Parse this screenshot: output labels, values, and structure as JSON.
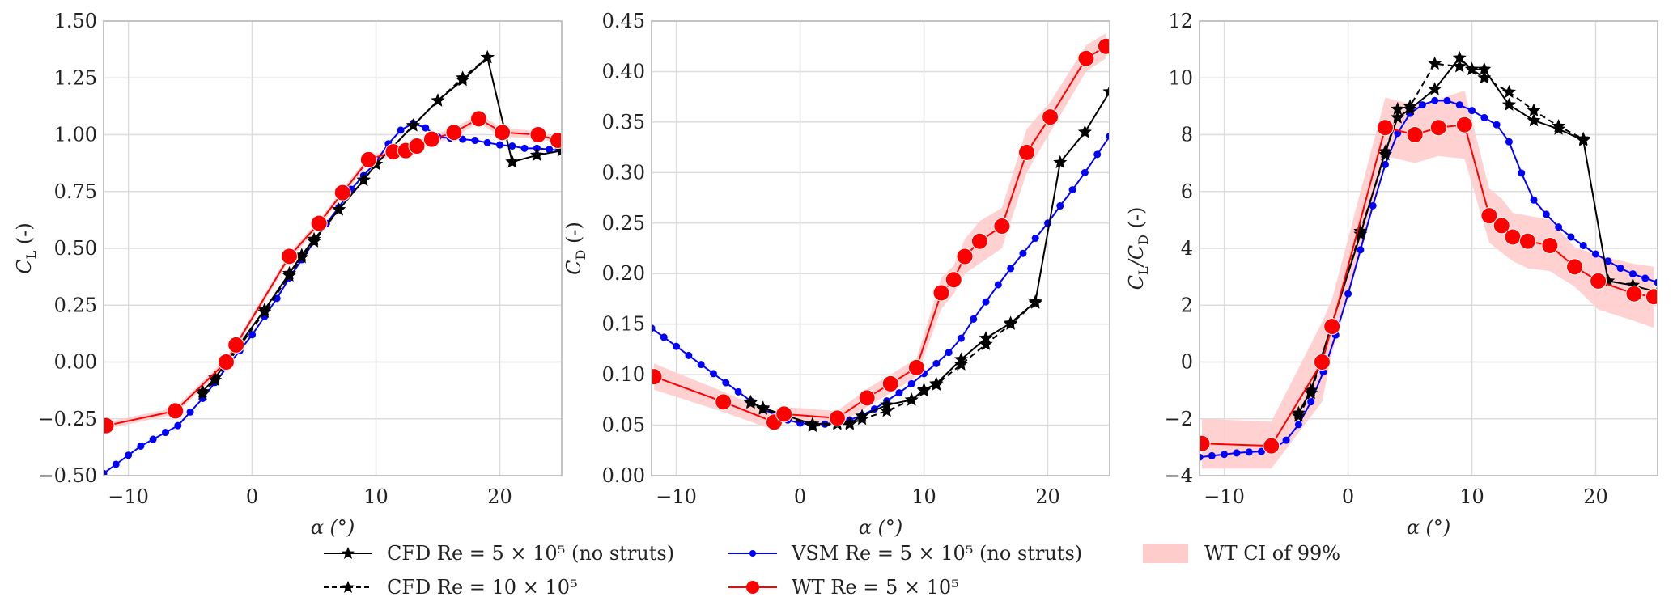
{
  "figure": {
    "legend": [
      {
        "id": "cfd5",
        "label": "CFD Re = 5 × 10⁵ (no struts)",
        "color": "#000000",
        "style": "solid",
        "marker": "star"
      },
      {
        "id": "cfd10",
        "label": "CFD Re = 10 × 10⁵",
        "color": "#000000",
        "style": "dashed",
        "marker": "star"
      },
      {
        "id": "vsm",
        "label": "VSM Re = 5 × 10⁵ (no struts)",
        "color": "#0000ff",
        "style": "solid",
        "marker": "dot"
      },
      {
        "id": "wt",
        "label": "WT Re = 5 × 10⁵",
        "color": "#ff0000",
        "style": "solid",
        "marker": "circle"
      },
      {
        "id": "ci",
        "label": "WT CI of 99%",
        "color": "#ffcccc",
        "style": "fill",
        "marker": "patch"
      }
    ]
  },
  "chart_data": [
    {
      "type": "line",
      "title": "",
      "xlabel": "α (°)",
      "ylabel": "C_L (-)",
      "ylabel_main": "C",
      "ylabel_sub": "L",
      "ylabel_suffix": " (-)",
      "xlim": [
        -12,
        25
      ],
      "ylim": [
        -0.5,
        1.5
      ],
      "xticks": [
        -10,
        0,
        10,
        20
      ],
      "xtick_labels": [
        "−10",
        "0",
        "10",
        "20"
      ],
      "yticks": [
        -0.5,
        -0.25,
        0,
        0.25,
        0.5,
        0.75,
        1.0,
        1.25,
        1.5
      ],
      "ytick_labels": [
        "−0.50",
        "−0.25",
        "0.00",
        "0.25",
        "0.50",
        "0.75",
        "1.00",
        "1.25",
        "1.50"
      ],
      "grid": true,
      "series": [
        {
          "name": "VSM Re = 5 × 10⁵ (no struts)",
          "ref": "vsm",
          "x": [
            -12,
            -11,
            -10,
            -9,
            -8,
            -7,
            -6,
            -5,
            -4,
            -3,
            -2,
            -1,
            0,
            1,
            2,
            3,
            4,
            5,
            6,
            7,
            8,
            9,
            10,
            11,
            12,
            13,
            14,
            15,
            16,
            17,
            18,
            19,
            20,
            21,
            22,
            23,
            24,
            25
          ],
          "y": [
            -0.49,
            -0.45,
            -0.41,
            -0.37,
            -0.34,
            -0.31,
            -0.28,
            -0.22,
            -0.16,
            -0.09,
            -0.02,
            0.05,
            0.12,
            0.2,
            0.28,
            0.37,
            0.45,
            0.53,
            0.61,
            0.68,
            0.76,
            0.82,
            0.88,
            0.96,
            1.02,
            1.05,
            1.03,
            0.99,
            0.985,
            0.98,
            0.975,
            0.965,
            0.955,
            0.95,
            0.94,
            0.94,
            0.935,
            0.93
          ]
        },
        {
          "name": "CFD Re = 5 × 10⁵ (no struts)",
          "ref": "cfd5",
          "x": [
            -4,
            -3,
            1,
            3,
            4,
            5,
            7,
            9,
            10,
            13,
            15,
            17,
            19,
            21,
            23,
            25
          ],
          "y": [
            -0.13,
            -0.07,
            0.23,
            0.39,
            0.47,
            0.54,
            0.67,
            0.8,
            0.87,
            1.04,
            1.15,
            1.24,
            1.34,
            0.88,
            0.91,
            0.93
          ]
        },
        {
          "name": "CFD Re = 10 × 10⁵",
          "ref": "cfd10",
          "x": [
            -4,
            -3,
            1,
            3,
            4,
            5,
            7,
            9,
            10,
            13,
            15,
            17,
            19
          ],
          "y": [
            -0.14,
            -0.08,
            0.22,
            0.38,
            0.46,
            0.53,
            0.67,
            0.8,
            0.87,
            1.04,
            1.15,
            1.25,
            1.34
          ]
        },
        {
          "name": "WT Re = 5 × 10⁵",
          "ref": "wt",
          "x": [
            -11.8,
            -6.2,
            -2.1,
            -1.3,
            3.0,
            5.4,
            7.3,
            9.4,
            11.4,
            12.4,
            13.3,
            14.5,
            16.3,
            18.3,
            20.2,
            23.1,
            24.7
          ],
          "y": [
            -0.28,
            -0.215,
            0.0,
            0.075,
            0.465,
            0.61,
            0.745,
            0.89,
            0.925,
            0.93,
            0.95,
            0.98,
            1.01,
            1.07,
            1.01,
            1.0,
            0.975
          ],
          "ci_lower": [
            -0.295,
            -0.23,
            -0.015,
            0.06,
            0.45,
            0.595,
            0.73,
            0.875,
            0.905,
            0.91,
            0.93,
            0.96,
            0.99,
            1.05,
            0.99,
            0.985,
            0.96
          ],
          "ci_upper": [
            -0.265,
            -0.2,
            0.015,
            0.09,
            0.48,
            0.625,
            0.76,
            0.905,
            0.945,
            0.95,
            0.97,
            1.0,
            1.03,
            1.09,
            1.03,
            1.015,
            0.99
          ]
        }
      ]
    },
    {
      "type": "line",
      "title": "",
      "xlabel": "α (°)",
      "ylabel": "C_D (-)",
      "ylabel_main": "C",
      "ylabel_sub": "D",
      "ylabel_suffix": " (-)",
      "xlim": [
        -12,
        25
      ],
      "ylim": [
        0,
        0.45
      ],
      "xticks": [
        -10,
        0,
        10,
        20
      ],
      "xtick_labels": [
        "−10",
        "0",
        "10",
        "20"
      ],
      "yticks": [
        0,
        0.05,
        0.1,
        0.15,
        0.2,
        0.25,
        0.3,
        0.35,
        0.4,
        0.45
      ],
      "ytick_labels": [
        "0.00",
        "0.05",
        "0.10",
        "0.15",
        "0.20",
        "0.25",
        "0.30",
        "0.35",
        "0.40",
        "0.45"
      ],
      "grid": true,
      "series": [
        {
          "name": "VSM Re = 5 × 10⁵ (no struts)",
          "ref": "vsm",
          "x": [
            -12,
            -11,
            -10,
            -9,
            -8,
            -7,
            -6,
            -5,
            -4,
            -3,
            -2,
            -1,
            0,
            1,
            2,
            3,
            4,
            5,
            6,
            7,
            8,
            9,
            10,
            11,
            12,
            13,
            14,
            15,
            16,
            17,
            18,
            19,
            20,
            21,
            22,
            23,
            24,
            25
          ],
          "y": [
            0.146,
            0.137,
            0.128,
            0.119,
            0.11,
            0.101,
            0.092,
            0.083,
            0.074,
            0.066,
            0.06,
            0.055,
            0.052,
            0.051,
            0.051,
            0.052,
            0.055,
            0.06,
            0.066,
            0.074,
            0.082,
            0.091,
            0.101,
            0.111,
            0.122,
            0.136,
            0.155,
            0.172,
            0.189,
            0.205,
            0.22,
            0.235,
            0.25,
            0.267,
            0.283,
            0.3,
            0.318,
            0.336
          ]
        },
        {
          "name": "CFD Re = 5 × 10⁵ (no struts)",
          "ref": "cfd5",
          "x": [
            -4,
            -3,
            1,
            3,
            4,
            5,
            7,
            9,
            10,
            11,
            13,
            15,
            17,
            19,
            21,
            23,
            25
          ],
          "y": [
            0.073,
            0.067,
            0.051,
            0.052,
            0.052,
            0.059,
            0.07,
            0.075,
            0.085,
            0.091,
            0.115,
            0.136,
            0.151,
            0.172,
            0.31,
            0.34,
            0.38
          ]
        },
        {
          "name": "CFD Re = 10 × 10⁵",
          "ref": "cfd10",
          "x": [
            -4,
            -3,
            1,
            3,
            4,
            5,
            7,
            9,
            10,
            11,
            13,
            15,
            17,
            19
          ],
          "y": [
            0.072,
            0.066,
            0.049,
            0.051,
            0.051,
            0.056,
            0.064,
            0.075,
            0.084,
            0.09,
            0.11,
            0.13,
            0.15,
            0.171
          ]
        },
        {
          "name": "WT Re = 5 × 10⁵",
          "ref": "wt",
          "x": [
            -11.8,
            -6.2,
            -2.1,
            -1.3,
            3.0,
            5.4,
            7.3,
            9.4,
            11.4,
            12.4,
            13.3,
            14.5,
            16.3,
            18.3,
            20.2,
            23.1,
            24.7
          ],
          "y": [
            0.098,
            0.073,
            0.053,
            0.061,
            0.057,
            0.077,
            0.091,
            0.107,
            0.181,
            0.194,
            0.217,
            0.232,
            0.247,
            0.32,
            0.355,
            0.413,
            0.425
          ],
          "ci_lower": [
            0.085,
            0.063,
            0.045,
            0.054,
            0.05,
            0.068,
            0.082,
            0.098,
            0.165,
            0.18,
            0.2,
            0.21,
            0.225,
            0.3,
            0.34,
            0.4,
            0.413
          ],
          "ci_upper": [
            0.111,
            0.083,
            0.061,
            0.068,
            0.064,
            0.086,
            0.1,
            0.116,
            0.196,
            0.208,
            0.234,
            0.252,
            0.265,
            0.343,
            0.37,
            0.426,
            0.438
          ]
        }
      ]
    },
    {
      "type": "line",
      "title": "",
      "xlabel": "α (°)",
      "ylabel": "C_L/C_D (-)",
      "ylabel_main": "C",
      "ylabel_sub": "L",
      "ylabel_mid": "/C",
      "ylabel_sub2": "D",
      "ylabel_suffix": " (-)",
      "xlim": [
        -12,
        25
      ],
      "ylim": [
        -4,
        12
      ],
      "xticks": [
        -10,
        0,
        10,
        20
      ],
      "xtick_labels": [
        "−10",
        "0",
        "10",
        "20"
      ],
      "yticks": [
        -4,
        -2,
        0,
        2,
        4,
        6,
        8,
        10,
        12
      ],
      "ytick_labels": [
        "−4",
        "−2",
        "0",
        "2",
        "4",
        "6",
        "8",
        "10",
        "12"
      ],
      "grid": true,
      "series": [
        {
          "name": "VSM Re = 5 × 10⁵ (no struts)",
          "ref": "vsm",
          "x": [
            -12,
            -11,
            -10,
            -9,
            -8,
            -7,
            -6,
            -5,
            -4,
            -3,
            -2,
            -1,
            0,
            1,
            2,
            3,
            4,
            5,
            6,
            7,
            8,
            9,
            10,
            11,
            12,
            13,
            14,
            15,
            16,
            17,
            18,
            19,
            20,
            21,
            22,
            23,
            24,
            25
          ],
          "y": [
            -3.35,
            -3.3,
            -3.25,
            -3.2,
            -3.17,
            -3.15,
            -3.05,
            -2.75,
            -2.2,
            -1.4,
            -0.35,
            0.95,
            2.4,
            3.95,
            5.5,
            6.95,
            8.05,
            8.75,
            9.05,
            9.2,
            9.2,
            9.05,
            8.85,
            8.6,
            8.35,
            7.75,
            6.65,
            5.7,
            5.2,
            4.75,
            4.4,
            4.1,
            3.8,
            3.55,
            3.3,
            3.1,
            2.95,
            2.8
          ]
        },
        {
          "name": "CFD Re = 5 × 10⁵ (no struts)",
          "ref": "cfd5",
          "x": [
            -4,
            -3,
            1,
            3,
            4,
            5,
            7,
            9,
            10,
            11,
            13,
            15,
            17,
            19,
            21,
            23,
            25
          ],
          "y": [
            -1.8,
            -1.0,
            4.5,
            7.4,
            8.6,
            8.9,
            9.6,
            10.7,
            10.3,
            10.3,
            9.05,
            8.5,
            8.2,
            7.8,
            2.85,
            2.7,
            2.45
          ]
        },
        {
          "name": "CFD Re = 10 × 10⁵",
          "ref": "cfd10",
          "x": [
            -4,
            -3,
            1,
            3,
            4,
            5,
            7,
            9,
            10,
            11,
            13,
            15,
            17,
            19
          ],
          "y": [
            -1.9,
            -1.1,
            4.6,
            7.3,
            8.9,
            9.0,
            10.5,
            10.4,
            10.3,
            10.0,
            9.5,
            8.85,
            8.3,
            7.85
          ]
        },
        {
          "name": "WT Re = 5 × 10⁵",
          "ref": "wt",
          "x": [
            -11.8,
            -6.2,
            -2.1,
            -1.3,
            3.0,
            5.4,
            7.3,
            9.4,
            11.4,
            12.4,
            13.3,
            14.5,
            16.3,
            18.3,
            20.2,
            23.1,
            24.7
          ],
          "y": [
            -2.87,
            -2.95,
            0.0,
            1.25,
            8.25,
            8.0,
            8.25,
            8.35,
            5.15,
            4.8,
            4.4,
            4.25,
            4.1,
            3.35,
            2.85,
            2.4,
            2.3
          ],
          "ci_lower": [
            -3.75,
            -3.75,
            -1.4,
            0.3,
            7.25,
            7.0,
            7.25,
            7.15,
            4.2,
            3.85,
            3.55,
            3.3,
            3.2,
            2.65,
            1.85,
            1.45,
            1.2
          ],
          "ci_upper": [
            -2.0,
            -2.1,
            1.4,
            2.2,
            9.3,
            9.05,
            9.25,
            9.55,
            6.1,
            5.75,
            5.25,
            5.15,
            5.0,
            4.05,
            3.75,
            3.45,
            3.35
          ]
        }
      ]
    }
  ]
}
